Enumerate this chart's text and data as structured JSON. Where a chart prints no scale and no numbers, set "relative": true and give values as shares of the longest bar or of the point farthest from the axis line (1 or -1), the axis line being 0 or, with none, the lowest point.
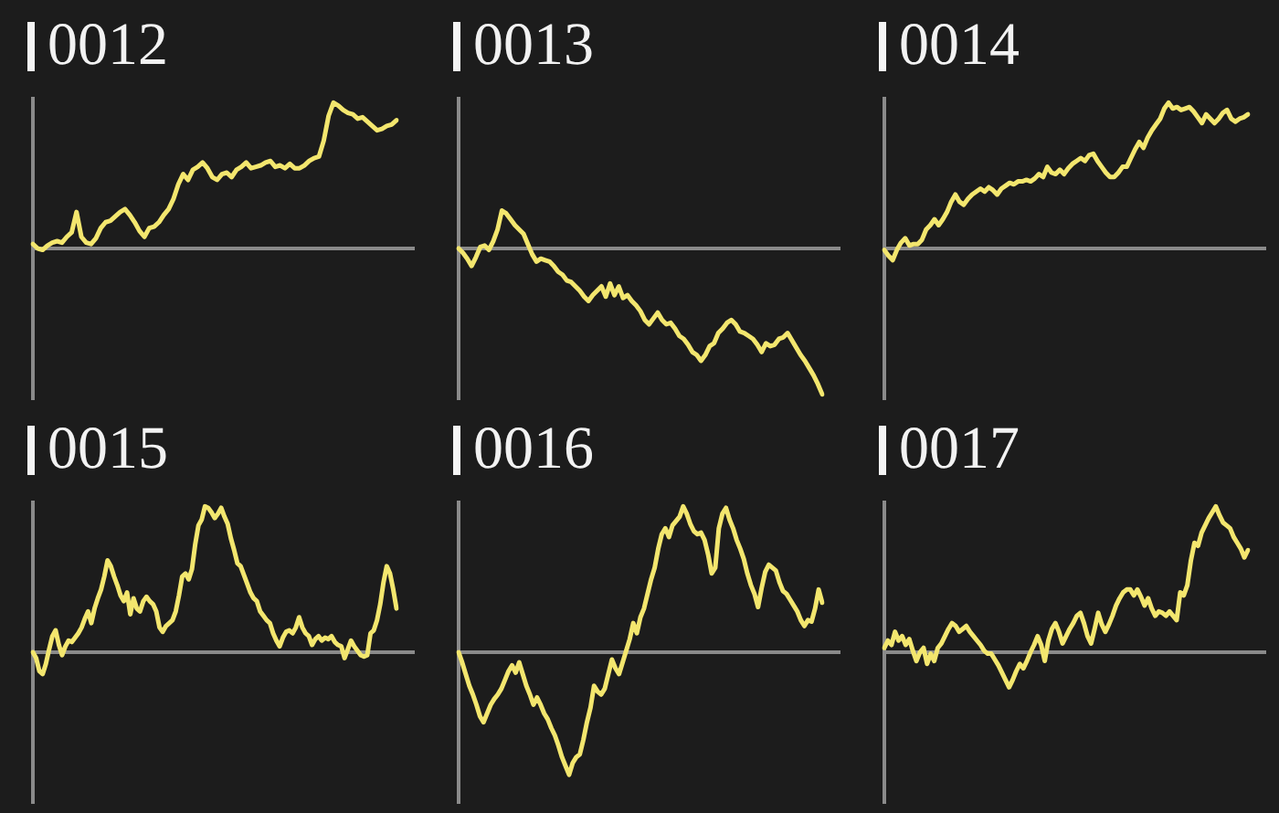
{
  "chart_data": [
    {
      "type": "line",
      "title": "0012",
      "relative": true,
      "marker": "none",
      "color": "#f3e66e",
      "categories": [
        null,
        null,
        null,
        null,
        null,
        null,
        null,
        null,
        null,
        null,
        null,
        null,
        null,
        null,
        null,
        null,
        null,
        null,
        null,
        null,
        null,
        null,
        null,
        null,
        null,
        null,
        null,
        null,
        null,
        null,
        null,
        null,
        null,
        null,
        null,
        null,
        null,
        null,
        null,
        null,
        null,
        null,
        null,
        null,
        null,
        null,
        null,
        null,
        null,
        null,
        null,
        null,
        null,
        null,
        null,
        null,
        null,
        null,
        null,
        null,
        null,
        null,
        null,
        null,
        null,
        null,
        null,
        null,
        null,
        null,
        null,
        null,
        null,
        null,
        null,
        null
      ],
      "values": [
        0.03,
        0,
        -0.01,
        0.02,
        0.04,
        0.05,
        0.04,
        0.08,
        0.11,
        0.25,
        0.08,
        0.04,
        0.03,
        0.07,
        0.14,
        0.18,
        0.19,
        0.22,
        0.25,
        0.27,
        0.23,
        0.18,
        0.12,
        0.08,
        0.14,
        0.15,
        0.18,
        0.23,
        0.27,
        0.34,
        0.44,
        0.51,
        0.47,
        0.54,
        0.56,
        0.59,
        0.55,
        0.49,
        0.47,
        0.51,
        0.52,
        0.49,
        0.54,
        0.56,
        0.59,
        0.55,
        0.56,
        0.57,
        0.59,
        0.6,
        0.56,
        0.57,
        0.55,
        0.58,
        0.55,
        0.55,
        0.57,
        0.6,
        0.62,
        0.63,
        0.74,
        0.91,
        1,
        0.98,
        0.95,
        0.93,
        0.92,
        0.89,
        0.9,
        0.87,
        0.84,
        0.81,
        0.82,
        0.84,
        0.85,
        0.88
      ]
    },
    {
      "type": "line",
      "title": "0013",
      "relative": true,
      "marker": "none",
      "color": "#f3e66e",
      "categories": [
        null,
        null,
        null,
        null,
        null,
        null,
        null,
        null,
        null,
        null,
        null,
        null,
        null,
        null,
        null,
        null,
        null,
        null,
        null,
        null,
        null,
        null,
        null,
        null,
        null,
        null,
        null,
        null,
        null,
        null,
        null,
        null,
        null,
        null,
        null,
        null,
        null,
        null,
        null,
        null,
        null,
        null,
        null,
        null,
        null,
        null,
        null,
        null,
        null,
        null,
        null,
        null,
        null,
        null,
        null,
        null,
        null,
        null,
        null,
        null,
        null,
        null,
        null,
        null,
        null,
        null,
        null,
        null,
        null,
        null,
        null,
        null,
        null,
        null,
        null,
        null,
        null,
        null,
        null,
        null,
        null,
        null,
        null,
        null,
        null
      ],
      "values": [
        0,
        -0.03,
        -0.07,
        -0.12,
        -0.06,
        0.01,
        0.02,
        -0.01,
        0.05,
        0.13,
        0.26,
        0.24,
        0.2,
        0.16,
        0.13,
        0.1,
        0.03,
        -0.04,
        -0.09,
        -0.07,
        -0.08,
        -0.09,
        -0.12,
        -0.16,
        -0.18,
        -0.22,
        -0.23,
        -0.26,
        -0.29,
        -0.33,
        -0.36,
        -0.32,
        -0.29,
        -0.26,
        -0.33,
        -0.24,
        -0.32,
        -0.26,
        -0.34,
        -0.32,
        -0.36,
        -0.39,
        -0.43,
        -0.49,
        -0.52,
        -0.48,
        -0.44,
        -0.49,
        -0.52,
        -0.51,
        -0.55,
        -0.6,
        -0.62,
        -0.66,
        -0.71,
        -0.73,
        -0.77,
        -0.73,
        -0.67,
        -0.65,
        -0.58,
        -0.55,
        -0.51,
        -0.49,
        -0.52,
        -0.57,
        -0.58,
        -0.6,
        -0.62,
        -0.66,
        -0.71,
        -0.65,
        -0.67,
        -0.66,
        -0.62,
        -0.61,
        -0.58,
        -0.63,
        -0.68,
        -0.73,
        -0.77,
        -0.82,
        -0.87,
        -0.93,
        -1
      ]
    },
    {
      "type": "line",
      "title": "0014",
      "relative": true,
      "marker": "none",
      "color": "#f3e66e",
      "categories": [
        null,
        null,
        null,
        null,
        null,
        null,
        null,
        null,
        null,
        null,
        null,
        null,
        null,
        null,
        null,
        null,
        null,
        null,
        null,
        null,
        null,
        null,
        null,
        null,
        null,
        null,
        null,
        null,
        null,
        null,
        null,
        null,
        null,
        null,
        null,
        null,
        null,
        null,
        null,
        null,
        null,
        null,
        null,
        null,
        null,
        null,
        null,
        null,
        null,
        null,
        null,
        null,
        null,
        null,
        null,
        null,
        null,
        null,
        null,
        null,
        null,
        null,
        null,
        null,
        null,
        null,
        null,
        null,
        null,
        null,
        null,
        null,
        null,
        null,
        null,
        null,
        null,
        null,
        null,
        null,
        null,
        null,
        null,
        null,
        null,
        null,
        null,
        null
      ],
      "values": [
        -0.01,
        -0.05,
        -0.08,
        -0.01,
        0.04,
        0.07,
        0.02,
        0.03,
        0.03,
        0.06,
        0.13,
        0.16,
        0.2,
        0.16,
        0.2,
        0.25,
        0.32,
        0.37,
        0.32,
        0.3,
        0.34,
        0.37,
        0.39,
        0.41,
        0.39,
        0.42,
        0.4,
        0.37,
        0.41,
        0.43,
        0.45,
        0.44,
        0.46,
        0.46,
        0.47,
        0.46,
        0.48,
        0.51,
        0.49,
        0.56,
        0.52,
        0.51,
        0.54,
        0.51,
        0.55,
        0.58,
        0.6,
        0.62,
        0.6,
        0.64,
        0.65,
        0.6,
        0.56,
        0.52,
        0.49,
        0.49,
        0.52,
        0.56,
        0.56,
        0.62,
        0.68,
        0.73,
        0.69,
        0.76,
        0.81,
        0.85,
        0.89,
        0.96,
        1,
        0.96,
        0.97,
        0.95,
        0.96,
        0.97,
        0.94,
        0.9,
        0.86,
        0.92,
        0.89,
        0.86,
        0.89,
        0.93,
        0.95,
        0.89,
        0.87,
        0.89,
        0.9,
        0.92
      ]
    },
    {
      "type": "line",
      "title": "0015",
      "relative": true,
      "marker": "none",
      "color": "#f3e66e",
      "categories": [
        null,
        null,
        null,
        null,
        null,
        null,
        null,
        null,
        null,
        null,
        null,
        null,
        null,
        null,
        null,
        null,
        null,
        null,
        null,
        null,
        null,
        null,
        null,
        null,
        null,
        null,
        null,
        null,
        null,
        null,
        null,
        null,
        null,
        null,
        null,
        null,
        null,
        null,
        null,
        null,
        null,
        null,
        null,
        null,
        null,
        null,
        null,
        null,
        null,
        null,
        null,
        null,
        null,
        null,
        null,
        null,
        null,
        null,
        null,
        null,
        null,
        null,
        null,
        null,
        null,
        null,
        null,
        null,
        null,
        null,
        null,
        null,
        null,
        null,
        null,
        null,
        null,
        null,
        null,
        null,
        null,
        null,
        null,
        null,
        null,
        null,
        null,
        null,
        null,
        null,
        null,
        null,
        null,
        null,
        null,
        null,
        null,
        null,
        null,
        null,
        null,
        null,
        null,
        null,
        null,
        null,
        null,
        null,
        null,
        null,
        null,
        null,
        null
      ],
      "values": [
        0,
        -0.04,
        -0.13,
        -0.15,
        -0.08,
        0.02,
        0.11,
        0.15,
        0.05,
        -0.02,
        0.04,
        0.08,
        0.07,
        0.1,
        0.13,
        0.17,
        0.23,
        0.28,
        0.2,
        0.3,
        0.37,
        0.43,
        0.52,
        0.63,
        0.59,
        0.52,
        0.46,
        0.39,
        0.35,
        0.41,
        0.26,
        0.37,
        0.3,
        0.28,
        0.35,
        0.38,
        0.35,
        0.33,
        0.28,
        0.17,
        0.14,
        0.18,
        0.2,
        0.22,
        0.28,
        0.39,
        0.52,
        0.54,
        0.5,
        0.57,
        0.74,
        0.87,
        0.91,
        1,
        0.99,
        0.96,
        0.92,
        0.95,
        0.99,
        0.93,
        0.88,
        0.78,
        0.7,
        0.61,
        0.59,
        0.53,
        0.47,
        0.41,
        0.37,
        0.35,
        0.28,
        0.25,
        0.22,
        0.2,
        0.13,
        0.08,
        0.04,
        0.1,
        0.14,
        0.15,
        0.13,
        0.17,
        0.24,
        0.17,
        0.13,
        0.11,
        0.05,
        0.09,
        0.11,
        0.08,
        0.1,
        0.09,
        0.11,
        0.07,
        0.05,
        0.04,
        -0.04,
        0.02,
        0.08,
        0.04,
        0.01,
        -0.02,
        -0.03,
        -0.02,
        0.13,
        0.15,
        0.22,
        0.33,
        0.48,
        0.59,
        0.54,
        0.43,
        0.3
      ]
    },
    {
      "type": "line",
      "title": "0016",
      "relative": true,
      "marker": "none",
      "color": "#f3e66e",
      "categories": [
        null,
        null,
        null,
        null,
        null,
        null,
        null,
        null,
        null,
        null,
        null,
        null,
        null,
        null,
        null,
        null,
        null,
        null,
        null,
        null,
        null,
        null,
        null,
        null,
        null,
        null,
        null,
        null,
        null,
        null,
        null,
        null,
        null,
        null,
        null,
        null,
        null,
        null,
        null,
        null,
        null,
        null,
        null,
        null,
        null,
        null,
        null,
        null,
        null,
        null,
        null,
        null,
        null,
        null,
        null,
        null,
        null,
        null,
        null,
        null,
        null,
        null,
        null,
        null,
        null,
        null,
        null,
        null,
        null,
        null,
        null,
        null,
        null,
        null,
        null,
        null,
        null,
        null,
        null,
        null,
        null,
        null,
        null,
        null,
        null,
        null,
        null,
        null,
        null,
        null,
        null,
        null,
        null,
        null,
        null,
        null,
        null,
        null,
        null,
        null,
        null,
        null,
        null
      ],
      "values": [
        0,
        -0.07,
        -0.15,
        -0.23,
        -0.29,
        -0.36,
        -0.44,
        -0.48,
        -0.42,
        -0.36,
        -0.32,
        -0.29,
        -0.25,
        -0.19,
        -0.13,
        -0.09,
        -0.14,
        -0.07,
        -0.15,
        -0.23,
        -0.29,
        -0.36,
        -0.31,
        -0.36,
        -0.42,
        -0.46,
        -0.52,
        -0.57,
        -0.64,
        -0.72,
        -0.78,
        -0.84,
        -0.76,
        -0.72,
        -0.7,
        -0.6,
        -0.48,
        -0.38,
        -0.23,
        -0.27,
        -0.29,
        -0.25,
        -0.15,
        -0.05,
        -0.11,
        -0.15,
        -0.07,
        0.01,
        0.09,
        0.2,
        0.13,
        0.24,
        0.3,
        0.4,
        0.5,
        0.58,
        0.71,
        0.81,
        0.85,
        0.79,
        0.87,
        0.9,
        0.93,
        1,
        0.95,
        0.88,
        0.83,
        0.81,
        0.82,
        0.77,
        0.67,
        0.54,
        0.58,
        0.85,
        0.95,
        0.99,
        0.91,
        0.85,
        0.77,
        0.71,
        0.64,
        0.54,
        0.46,
        0.4,
        0.31,
        0.44,
        0.55,
        0.6,
        0.58,
        0.56,
        0.48,
        0.42,
        0.4,
        0.36,
        0.32,
        0.28,
        0.22,
        0.18,
        0.22,
        0.21,
        0.3,
        0.43,
        0.34
      ]
    },
    {
      "type": "line",
      "title": "0017",
      "relative": true,
      "marker": "none",
      "color": "#f3e66e",
      "categories": [
        null,
        null,
        null,
        null,
        null,
        null,
        null,
        null,
        null,
        null,
        null,
        null,
        null,
        null,
        null,
        null,
        null,
        null,
        null,
        null,
        null,
        null,
        null,
        null,
        null,
        null,
        null,
        null,
        null,
        null,
        null,
        null,
        null,
        null,
        null,
        null,
        null,
        null,
        null,
        null,
        null,
        null,
        null,
        null,
        null,
        null,
        null,
        null,
        null,
        null,
        null,
        null,
        null,
        null,
        null,
        null,
        null,
        null,
        null,
        null,
        null,
        null,
        null,
        null,
        null,
        null,
        null,
        null,
        null,
        null,
        null,
        null,
        null,
        null,
        null,
        null,
        null,
        null,
        null,
        null,
        null,
        null,
        null,
        null,
        null,
        null,
        null,
        null,
        null,
        null,
        null,
        null,
        null,
        null,
        null,
        null,
        null,
        null,
        null,
        null,
        null,
        null,
        null
      ],
      "values": [
        0.03,
        0.08,
        0.05,
        0.14,
        0.08,
        0.11,
        0.05,
        0.09,
        0.01,
        -0.06,
        0,
        0.03,
        -0.08,
        -0.01,
        -0.06,
        0.03,
        0.06,
        0.11,
        0.16,
        0.2,
        0.18,
        0.14,
        0.16,
        0.18,
        0.14,
        0.11,
        0.08,
        0.05,
        0.01,
        -0.01,
        -0.01,
        -0.05,
        -0.09,
        -0.14,
        -0.19,
        -0.24,
        -0.19,
        -0.13,
        -0.08,
        -0.11,
        -0.06,
        0,
        0.05,
        0.11,
        0.05,
        -0.06,
        0.08,
        0.16,
        0.2,
        0.14,
        0.06,
        0.11,
        0.16,
        0.2,
        0.25,
        0.27,
        0.2,
        0.11,
        0.06,
        0.16,
        0.27,
        0.19,
        0.14,
        0.19,
        0.25,
        0.32,
        0.37,
        0.41,
        0.43,
        0.43,
        0.39,
        0.43,
        0.38,
        0.32,
        0.37,
        0.3,
        0.25,
        0.28,
        0.27,
        0.25,
        0.28,
        0.25,
        0.22,
        0.41,
        0.39,
        0.46,
        0.63,
        0.75,
        0.73,
        0.82,
        0.87,
        0.92,
        0.96,
        1,
        0.94,
        0.89,
        0.87,
        0.85,
        0.79,
        0.75,
        0.71,
        0.65,
        0.7
      ]
    }
  ]
}
